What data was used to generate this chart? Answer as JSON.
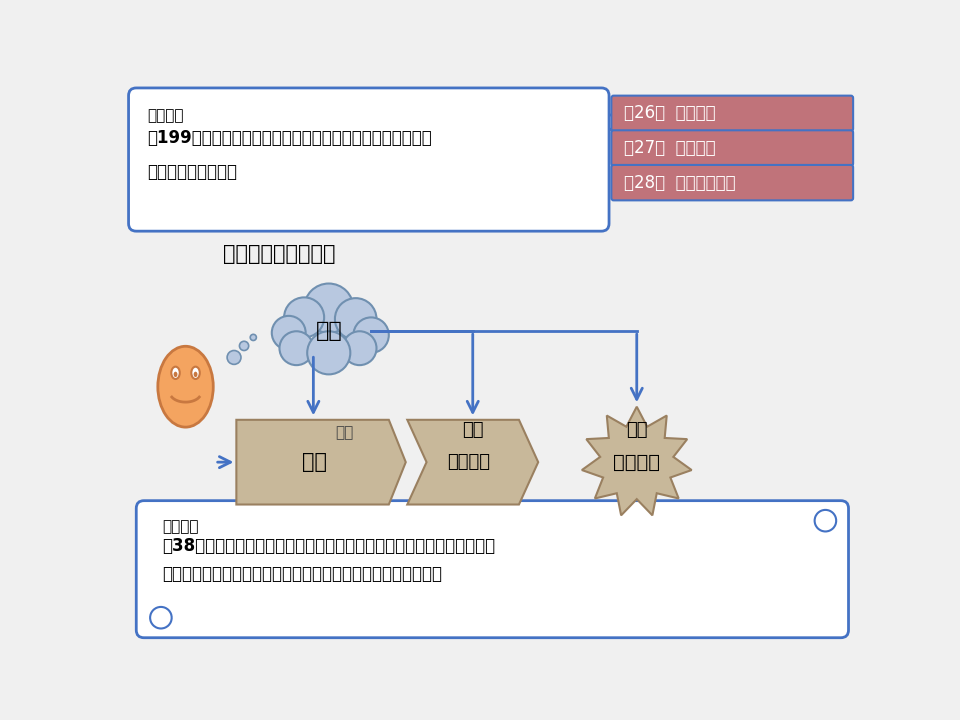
{
  "bg_color": "#f0f0f0",
  "top_box_text_line1": "（殺人）",
  "top_box_text_line2_bold": "第199条　人を殺した者は、死刑又は無期若しくは五年以上",
  "top_box_text_line3_bold": "　の懲役に処する。",
  "top_box_bg": "#ffffff",
  "top_box_border": "#4472c4",
  "chapters": [
    "第26章  殺人の罪",
    "第27章  傷害の罪",
    "第28章  過失傷害の罪"
  ],
  "chapter_bg": "#c0737a",
  "chapter_border": "#4472c4",
  "chapter_text_color": "#ffffff",
  "subtitle": "これが殺人罪です！",
  "arrow_color": "#4472c4",
  "cloud_color": "#b8c8e0",
  "cloud_edge": "#7090b0",
  "cloud_text": "故意",
  "person_face_color": "#f4a460",
  "person_edge_color": "#c87840",
  "box_act_color": "#c8b89a",
  "box_act_edge": "#9a8060",
  "box_act_text": "行為",
  "box_by_color": "#c8b89a",
  "box_by_edge": "#9a8060",
  "box_by_text": "によって",
  "star_color": "#c8b89a",
  "star_edge": "#9a8060",
  "star_text": "人が死亡",
  "label_ninshiki": "認識",
  "label_yoken1": "予見",
  "label_yoken2": "予見",
  "bottom_box_line1": "（故意）",
  "bottom_box_line2_bold": "第38条　罪を犯す意思がない行為は、罰しない。ただし、法律に特別の",
  "bottom_box_line3": "　　規定がある場合は、この限りでない。（２項・３項　略）",
  "bottom_box_bg": "#ffffff",
  "bottom_box_border": "#4472c4"
}
